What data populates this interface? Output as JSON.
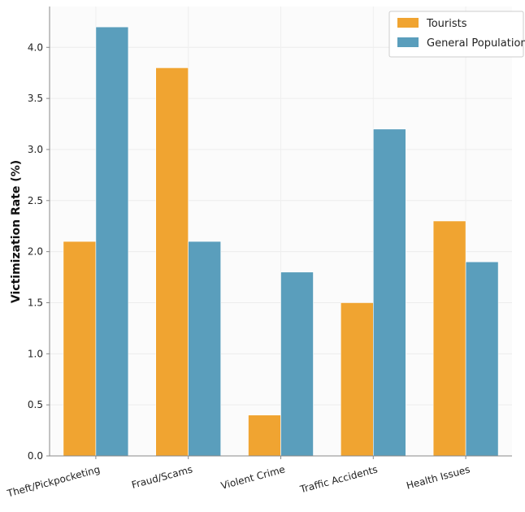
{
  "chart_data": {
    "type": "bar",
    "title": "",
    "xlabel": "",
    "ylabel": "Victimization Rate (%)",
    "categories": [
      "Theft/Pickpocketing",
      "Fraud/Scams",
      "Violent Crime",
      "Traffic Accidents",
      "Health Issues"
    ],
    "series": [
      {
        "name": "Tourists",
        "color": "#F0A431",
        "values": [
          2.1,
          3.8,
          0.4,
          1.5,
          2.3
        ]
      },
      {
        "name": "General Population",
        "color": "#5A9EBC",
        "values": [
          4.2,
          2.1,
          1.8,
          3.2,
          1.9
        ]
      }
    ],
    "ylim": [
      0,
      4.4
    ],
    "yticks": [
      "0.0",
      "0.5",
      "1.0",
      "1.5",
      "2.0",
      "2.5",
      "3.0",
      "3.5",
      "4.0"
    ],
    "grid": true,
    "legend_position": "top-right"
  }
}
